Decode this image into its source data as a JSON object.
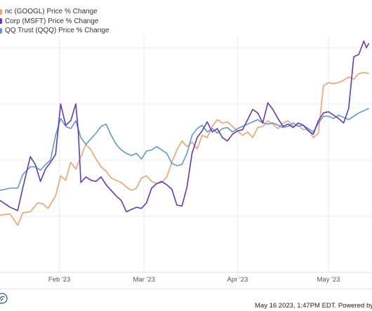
{
  "chart_data": {
    "type": "line",
    "title": "",
    "xlabel": "",
    "ylabel": "",
    "x_tick_labels": [
      "Feb '23",
      "Mar '23",
      "Apr '23",
      "May '23"
    ],
    "y_range": [
      -5,
      16
    ],
    "grid": true,
    "legend_position": "top-left",
    "series": [
      {
        "name": "nc (GOOGL) Price % Change",
        "color": "#f5a26a",
        "points": [
          [
            0,
            0.1
          ],
          [
            0.04,
            0.2
          ],
          [
            0.07,
            -0.8
          ],
          [
            0.09,
            0.3
          ],
          [
            0.12,
            0.4
          ],
          [
            0.15,
            1.2
          ],
          [
            0.17,
            1.1
          ],
          [
            0.19,
            0.7
          ],
          [
            0.22,
            1.8
          ],
          [
            0.24,
            3.6
          ],
          [
            0.26,
            3.2
          ],
          [
            0.28,
            4.8
          ],
          [
            0.3,
            4.2
          ],
          [
            0.32,
            5.3
          ],
          [
            0.34,
            6.4
          ],
          [
            0.36,
            5.9
          ],
          [
            0.38,
            5.1
          ],
          [
            0.4,
            4.4
          ],
          [
            0.42,
            4.0
          ],
          [
            0.44,
            3.4
          ],
          [
            0.46,
            3.2
          ],
          [
            0.48,
            3.0
          ],
          [
            0.5,
            2.6
          ],
          [
            0.52,
            2.3
          ],
          [
            0.54,
            2.5
          ],
          [
            0.56,
            3.4
          ],
          [
            0.58,
            3.6
          ],
          [
            0.6,
            3.1
          ],
          [
            0.62,
            2.9
          ],
          [
            0.64,
            3.0
          ],
          [
            0.66,
            3.5
          ],
          [
            0.68,
            4.8
          ],
          [
            0.7,
            5.9
          ],
          [
            0.72,
            6.7
          ],
          [
            0.74,
            6.2
          ],
          [
            0.76,
            6.6
          ],
          [
            0.78,
            6.0
          ],
          [
            0.8,
            7.2
          ],
          [
            0.82,
            7.0
          ],
          [
            0.84,
            8.0
          ],
          [
            0.86,
            8.6
          ],
          [
            0.88,
            8.3
          ],
          [
            0.9,
            8.4
          ],
          [
            0.92,
            8.0
          ],
          [
            0.94,
            7.6
          ],
          [
            0.96,
            7.2
          ],
          [
            0.98,
            7.5
          ],
          [
            1.0,
            7.0
          ],
          [
            1.02,
            7.9
          ],
          [
            1.04,
            8.0
          ],
          [
            1.06,
            8.5
          ],
          [
            1.08,
            8.2
          ],
          [
            1.1,
            7.8
          ],
          [
            1.12,
            8.3
          ],
          [
            1.14,
            8.5
          ],
          [
            1.16,
            8.0
          ],
          [
            1.18,
            8.1
          ],
          [
            1.2,
            7.7
          ],
          [
            1.22,
            7.8
          ],
          [
            1.24,
            7.0
          ],
          [
            1.26,
            7.4
          ],
          [
            1.28,
            11.6
          ],
          [
            1.3,
            11.9
          ],
          [
            1.32,
            11.8
          ],
          [
            1.34,
            11.9
          ],
          [
            1.36,
            12.1
          ],
          [
            1.38,
            12.4
          ],
          [
            1.4,
            12.2
          ],
          [
            1.42,
            12.7
          ],
          [
            1.44,
            12.8
          ],
          [
            1.46,
            12.7
          ]
        ]
      },
      {
        "name": "Corp (MSFT) Price % Change",
        "color": "#6236c9",
        "points": [
          [
            0,
            1.4
          ],
          [
            0.04,
            0.8
          ],
          [
            0.07,
            0.5
          ],
          [
            0.09,
            2.5
          ],
          [
            0.12,
            5.3
          ],
          [
            0.14,
            4.6
          ],
          [
            0.16,
            3.1
          ],
          [
            0.18,
            4.2
          ],
          [
            0.2,
            4.8
          ],
          [
            0.22,
            5.5
          ],
          [
            0.24,
            10.0
          ],
          [
            0.26,
            8.1
          ],
          [
            0.28,
            8.5
          ],
          [
            0.3,
            10.0
          ],
          [
            0.31,
            7.5
          ],
          [
            0.32,
            3.0
          ],
          [
            0.34,
            3.5
          ],
          [
            0.36,
            3.2
          ],
          [
            0.38,
            3.1
          ],
          [
            0.4,
            3.5
          ],
          [
            0.42,
            2.8
          ],
          [
            0.44,
            2.3
          ],
          [
            0.46,
            1.8
          ],
          [
            0.48,
            1.4
          ],
          [
            0.5,
            0.4
          ],
          [
            0.52,
            0.6
          ],
          [
            0.54,
            0.8
          ],
          [
            0.56,
            0.7
          ],
          [
            0.58,
            1.2
          ],
          [
            0.6,
            2.5
          ],
          [
            0.62,
            2.9
          ],
          [
            0.64,
            3.1
          ],
          [
            0.66,
            2.8
          ],
          [
            0.68,
            2.4
          ],
          [
            0.7,
            1.0
          ],
          [
            0.72,
            0.9
          ],
          [
            0.74,
            2.6
          ],
          [
            0.76,
            5.6
          ],
          [
            0.78,
            7.0
          ],
          [
            0.8,
            7.6
          ],
          [
            0.82,
            8.4
          ],
          [
            0.84,
            7.5
          ],
          [
            0.86,
            7.8
          ],
          [
            0.88,
            7.0
          ],
          [
            0.9,
            6.7
          ],
          [
            0.92,
            7.3
          ],
          [
            0.94,
            7.6
          ],
          [
            0.96,
            7.7
          ],
          [
            0.98,
            8.6
          ],
          [
            1.0,
            9.5
          ],
          [
            1.02,
            9.2
          ],
          [
            1.04,
            8.3
          ],
          [
            1.06,
            10.1
          ],
          [
            1.08,
            9.5
          ],
          [
            1.1,
            8.7
          ],
          [
            1.12,
            8.0
          ],
          [
            1.14,
            8.2
          ],
          [
            1.16,
            7.9
          ],
          [
            1.18,
            8.3
          ],
          [
            1.2,
            8.1
          ],
          [
            1.22,
            7.6
          ],
          [
            1.24,
            7.3
          ],
          [
            1.26,
            8.5
          ],
          [
            1.28,
            9.2
          ],
          [
            1.3,
            9.3
          ],
          [
            1.32,
            9.0
          ],
          [
            1.34,
            8.7
          ],
          [
            1.36,
            8.3
          ],
          [
            1.38,
            9.6
          ],
          [
            1.4,
            14.2
          ],
          [
            1.42,
            14.4
          ],
          [
            1.44,
            15.6
          ],
          [
            1.45,
            15.0
          ],
          [
            1.46,
            15.4
          ]
        ]
      },
      {
        "name": "QQ Trust (QQQ) Price % Change",
        "color": "#5b9bd5",
        "points": [
          [
            0,
            2.3
          ],
          [
            0.04,
            2.5
          ],
          [
            0.07,
            2.5
          ],
          [
            0.09,
            3.7
          ],
          [
            0.12,
            4.4
          ],
          [
            0.14,
            4.4
          ],
          [
            0.16,
            4.1
          ],
          [
            0.18,
            4.6
          ],
          [
            0.2,
            5.0
          ],
          [
            0.22,
            7.2
          ],
          [
            0.24,
            8.7
          ],
          [
            0.26,
            8.0
          ],
          [
            0.28,
            7.8
          ],
          [
            0.3,
            8.5
          ],
          [
            0.32,
            7.0
          ],
          [
            0.34,
            6.4
          ],
          [
            0.36,
            6.9
          ],
          [
            0.38,
            7.4
          ],
          [
            0.4,
            8.0
          ],
          [
            0.42,
            8.2
          ],
          [
            0.44,
            7.2
          ],
          [
            0.46,
            6.4
          ],
          [
            0.48,
            5.9
          ],
          [
            0.5,
            5.6
          ],
          [
            0.52,
            5.4
          ],
          [
            0.54,
            5.6
          ],
          [
            0.56,
            5.1
          ],
          [
            0.58,
            5.8
          ],
          [
            0.6,
            5.9
          ],
          [
            0.62,
            6.2
          ],
          [
            0.64,
            5.9
          ],
          [
            0.66,
            5.6
          ],
          [
            0.68,
            4.7
          ],
          [
            0.7,
            4.5
          ],
          [
            0.72,
            4.6
          ],
          [
            0.74,
            5.6
          ],
          [
            0.76,
            7.2
          ],
          [
            0.78,
            7.8
          ],
          [
            0.8,
            8.1
          ],
          [
            0.82,
            7.5
          ],
          [
            0.84,
            7.8
          ],
          [
            0.86,
            7.4
          ],
          [
            0.88,
            7.8
          ],
          [
            0.9,
            7.9
          ],
          [
            0.92,
            7.5
          ],
          [
            0.94,
            7.8
          ],
          [
            0.96,
            8.0
          ],
          [
            0.98,
            8.2
          ],
          [
            1.0,
            8.4
          ],
          [
            1.02,
            8.6
          ],
          [
            1.04,
            8.3
          ],
          [
            1.06,
            8.2
          ],
          [
            1.08,
            8.3
          ],
          [
            1.1,
            8.1
          ],
          [
            1.12,
            7.9
          ],
          [
            1.14,
            8.0
          ],
          [
            1.16,
            8.3
          ],
          [
            1.18,
            8.0
          ],
          [
            1.2,
            8.1
          ],
          [
            1.22,
            7.8
          ],
          [
            1.24,
            7.5
          ],
          [
            1.26,
            8.3
          ],
          [
            1.28,
            8.9
          ],
          [
            1.3,
            8.9
          ],
          [
            1.32,
            8.7
          ],
          [
            1.34,
            9.0
          ],
          [
            1.36,
            8.8
          ],
          [
            1.38,
            8.6
          ],
          [
            1.4,
            8.9
          ],
          [
            1.42,
            9.2
          ],
          [
            1.44,
            9.4
          ],
          [
            1.46,
            9.6
          ]
        ]
      }
    ]
  },
  "footer": {
    "timestamp": "May 16 2023, 1:47PM EDT. Powered by"
  }
}
